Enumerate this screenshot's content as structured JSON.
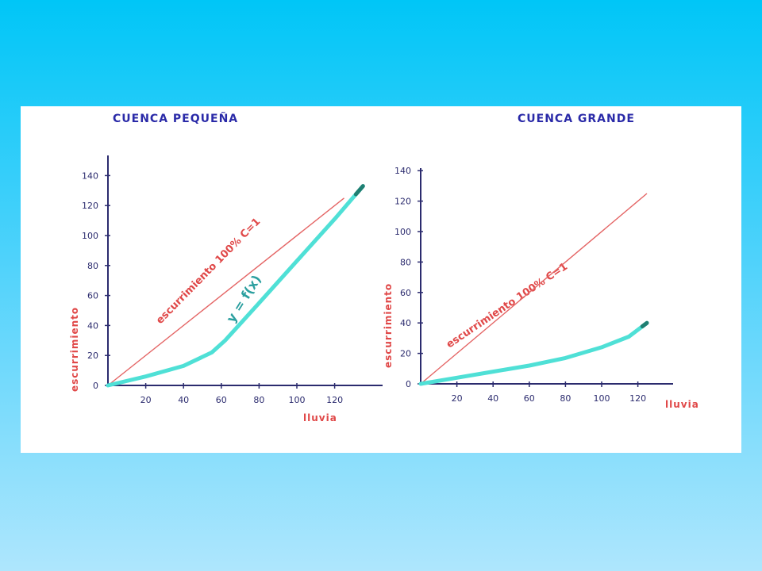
{
  "colors": {
    "axis": "#2b2b6e",
    "reference": "#e46464",
    "curve": "#4fe0d6",
    "curve_end": "#1f7f72",
    "title": "#2a2aa8",
    "label_red": "#e04848",
    "curve_label": "#2b9f9f"
  },
  "chart_data": [
    {
      "type": "line",
      "title": "CUENCA PEQUEÑA",
      "xlabel": "lluvia",
      "ylabel": "escurrimiento",
      "xlim": [
        0,
        135
      ],
      "ylim": [
        0,
        140
      ],
      "x_ticks": [
        "20",
        "40",
        "60",
        "80",
        "100",
        "120"
      ],
      "y_ticks": [
        "0",
        "20",
        "40",
        "60",
        "80",
        "100",
        "120",
        "140"
      ],
      "grid": false,
      "series": [
        {
          "name": "escurrimiento 100% C=1",
          "x": [
            0,
            125
          ],
          "y": [
            0,
            125
          ]
        },
        {
          "name": "y = f(x)",
          "x": [
            0,
            20,
            40,
            55,
            62,
            80,
            100,
            120,
            135
          ],
          "y": [
            0,
            6,
            13,
            22,
            30,
            55,
            83,
            111,
            133
          ]
        }
      ]
    },
    {
      "type": "line",
      "title": "CUENCA GRANDE",
      "xlabel": "lluvia",
      "ylabel": "escurrimiento",
      "xlim": [
        0,
        130
      ],
      "ylim": [
        0,
        140
      ],
      "x_ticks": [
        "20",
        "40",
        "60",
        "80",
        "100",
        "120"
      ],
      "y_ticks": [
        "0",
        "20",
        "40",
        "60",
        "80",
        "100",
        "120",
        "140"
      ],
      "grid": false,
      "series": [
        {
          "name": "escurrimiento 100% C=1",
          "x": [
            0,
            125
          ],
          "y": [
            0,
            125
          ]
        },
        {
          "name": "",
          "x": [
            0,
            20,
            40,
            60,
            80,
            100,
            115,
            125
          ],
          "y": [
            0,
            4,
            8,
            12,
            17,
            24,
            31,
            40
          ]
        }
      ]
    }
  ]
}
